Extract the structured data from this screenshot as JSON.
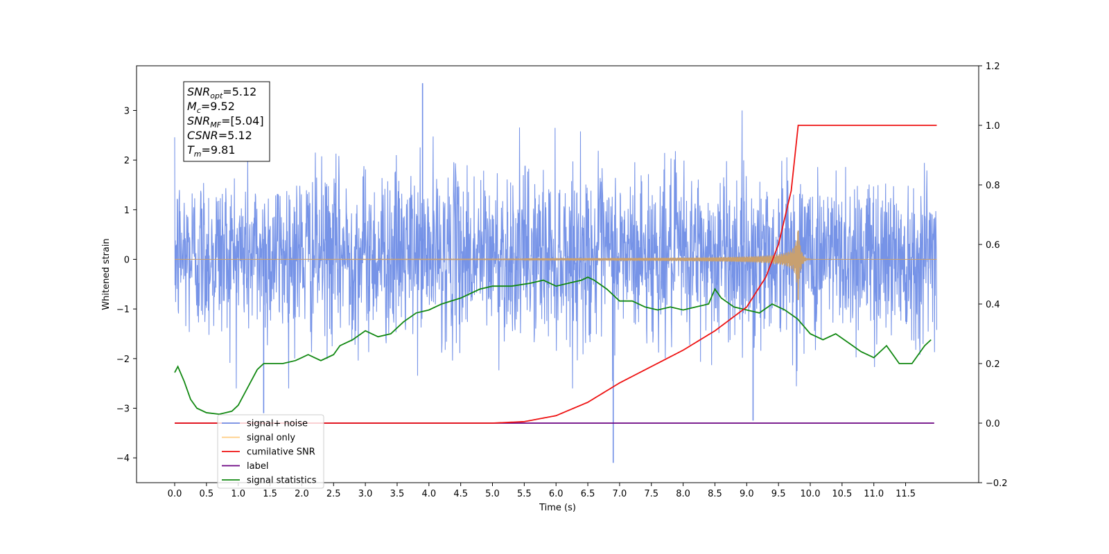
{
  "chart_data": {
    "type": "line",
    "xlabel": "Time (s)",
    "ylabel_left": "Whitened strain",
    "xlim": [
      -0.6,
      12.65
    ],
    "ylim_left": [
      -4.5,
      3.9
    ],
    "ylim_right": [
      -0.2,
      1.2
    ],
    "x_ticks": [
      0.0,
      0.5,
      1.0,
      1.5,
      2.0,
      2.5,
      3.0,
      3.5,
      4.0,
      4.5,
      5.0,
      5.5,
      6.0,
      6.5,
      7.0,
      7.5,
      8.0,
      8.5,
      9.0,
      9.5,
      10.0,
      10.5,
      11.0,
      11.5
    ],
    "x_tick_labels": [
      "0.0",
      "0.5",
      "1.0",
      "1.5",
      "2.0",
      "2.5",
      "3.0",
      "3.5",
      "4.0",
      "4.5",
      "5.0",
      "5.5",
      "6.0",
      "6.5",
      "7.0",
      "7.5",
      "8.0",
      "8.5",
      "9.0",
      "9.5",
      "10.0",
      "10.5",
      "11.0",
      "11.5"
    ],
    "y_left_ticks": [
      3,
      2,
      1,
      0,
      -1,
      -2,
      -3,
      -4
    ],
    "y_left_tick_labels": [
      "3",
      "2",
      "1",
      "0",
      "−1",
      "−2",
      "−3",
      "−4"
    ],
    "y_right_ticks": [
      1.2,
      1.0,
      0.8,
      0.6,
      0.4,
      0.2,
      0.0,
      -0.2
    ],
    "y_right_tick_labels": [
      "1.2",
      "1.0",
      "0.8",
      "0.6",
      "0.4",
      "0.2",
      "0.0",
      "−0.2"
    ],
    "annotation": [
      {
        "base": "SNR",
        "sub": "opt",
        "value": "=5.12"
      },
      {
        "base": "M",
        "sub": "c",
        "value": "=9.52"
      },
      {
        "base": "SNR",
        "sub": "MF",
        "value": "=[5.04]"
      },
      {
        "base": "CSNR",
        "sub": "",
        "value": "=5.12"
      },
      {
        "base": "T",
        "sub": "m",
        "value": "=9.81"
      }
    ],
    "legend": {
      "placement": "lower-left",
      "entries": [
        {
          "label": "signal+ noise",
          "color": "#6f8de6"
        },
        {
          "label": "signal only",
          "color": "#ffcc80"
        },
        {
          "label": "cumilative SNR",
          "color": "#ee1111"
        },
        {
          "label": "label",
          "color": "#6a0080"
        },
        {
          "label": "signal statistics",
          "color": "#118811"
        }
      ]
    },
    "series": [
      {
        "name": "signal+ noise",
        "axis": "left",
        "color": "#6f8de6",
        "x_range": [
          0.0,
          11.99
        ],
        "approx_envelope": [
          -2.0,
          2.1
        ],
        "notable_extremes": [
          {
            "x": 3.9,
            "y": 3.55
          },
          {
            "x": 6.9,
            "y": -4.1
          },
          {
            "x": 9.1,
            "y": -3.25
          },
          {
            "x": 1.4,
            "y": -3.1
          }
        ]
      },
      {
        "name": "signal only",
        "axis": "left",
        "color": "#c8a070",
        "x_range": [
          0.0,
          11.99
        ],
        "chirp_peak": {
          "x": 9.81,
          "y_max": 0.58,
          "y_min": -0.82
        }
      },
      {
        "name": "cumilative SNR",
        "axis": "right",
        "color": "#ee1111",
        "x": [
          0.0,
          5.0,
          5.5,
          6.0,
          6.5,
          7.0,
          7.5,
          8.0,
          8.5,
          9.0,
          9.3,
          9.5,
          9.7,
          9.81,
          11.99
        ],
        "values": [
          0.0,
          0.0,
          0.005,
          0.025,
          0.07,
          0.135,
          0.19,
          0.245,
          0.31,
          0.39,
          0.49,
          0.6,
          0.78,
          1.0,
          1.0
        ]
      },
      {
        "name": "label",
        "axis": "right",
        "color": "#6a0080",
        "x": [
          0.0,
          11.95
        ],
        "values": [
          0.0,
          0.0
        ]
      },
      {
        "name": "signal statistics",
        "axis": "right",
        "color": "#118811",
        "x": [
          0.0,
          0.05,
          0.15,
          0.25,
          0.35,
          0.5,
          0.7,
          0.8,
          0.9,
          1.0,
          1.1,
          1.3,
          1.4,
          1.5,
          1.7,
          1.9,
          2.0,
          2.1,
          2.2,
          2.3,
          2.5,
          2.6,
          2.8,
          3.0,
          3.2,
          3.4,
          3.6,
          3.8,
          4.0,
          4.2,
          4.5,
          4.8,
          5.0,
          5.3,
          5.6,
          5.8,
          6.0,
          6.2,
          6.4,
          6.5,
          6.6,
          6.8,
          7.0,
          7.2,
          7.4,
          7.6,
          7.8,
          8.0,
          8.2,
          8.4,
          8.5,
          8.6,
          8.8,
          9.0,
          9.2,
          9.4,
          9.6,
          9.8,
          10.0,
          10.2,
          10.4,
          10.6,
          10.8,
          11.0,
          11.2,
          11.4,
          11.6,
          11.8,
          11.9
        ],
        "values": [
          0.17,
          0.19,
          0.14,
          0.08,
          0.05,
          0.035,
          0.03,
          0.035,
          0.04,
          0.06,
          0.1,
          0.18,
          0.2,
          0.2,
          0.2,
          0.21,
          0.22,
          0.23,
          0.22,
          0.21,
          0.23,
          0.26,
          0.28,
          0.31,
          0.29,
          0.3,
          0.34,
          0.37,
          0.38,
          0.4,
          0.42,
          0.45,
          0.46,
          0.46,
          0.47,
          0.48,
          0.46,
          0.47,
          0.48,
          0.49,
          0.48,
          0.45,
          0.41,
          0.41,
          0.39,
          0.38,
          0.39,
          0.38,
          0.39,
          0.4,
          0.45,
          0.42,
          0.39,
          0.38,
          0.37,
          0.4,
          0.38,
          0.35,
          0.3,
          0.28,
          0.3,
          0.27,
          0.24,
          0.22,
          0.26,
          0.2,
          0.2,
          0.26,
          0.28
        ]
      }
    ]
  }
}
